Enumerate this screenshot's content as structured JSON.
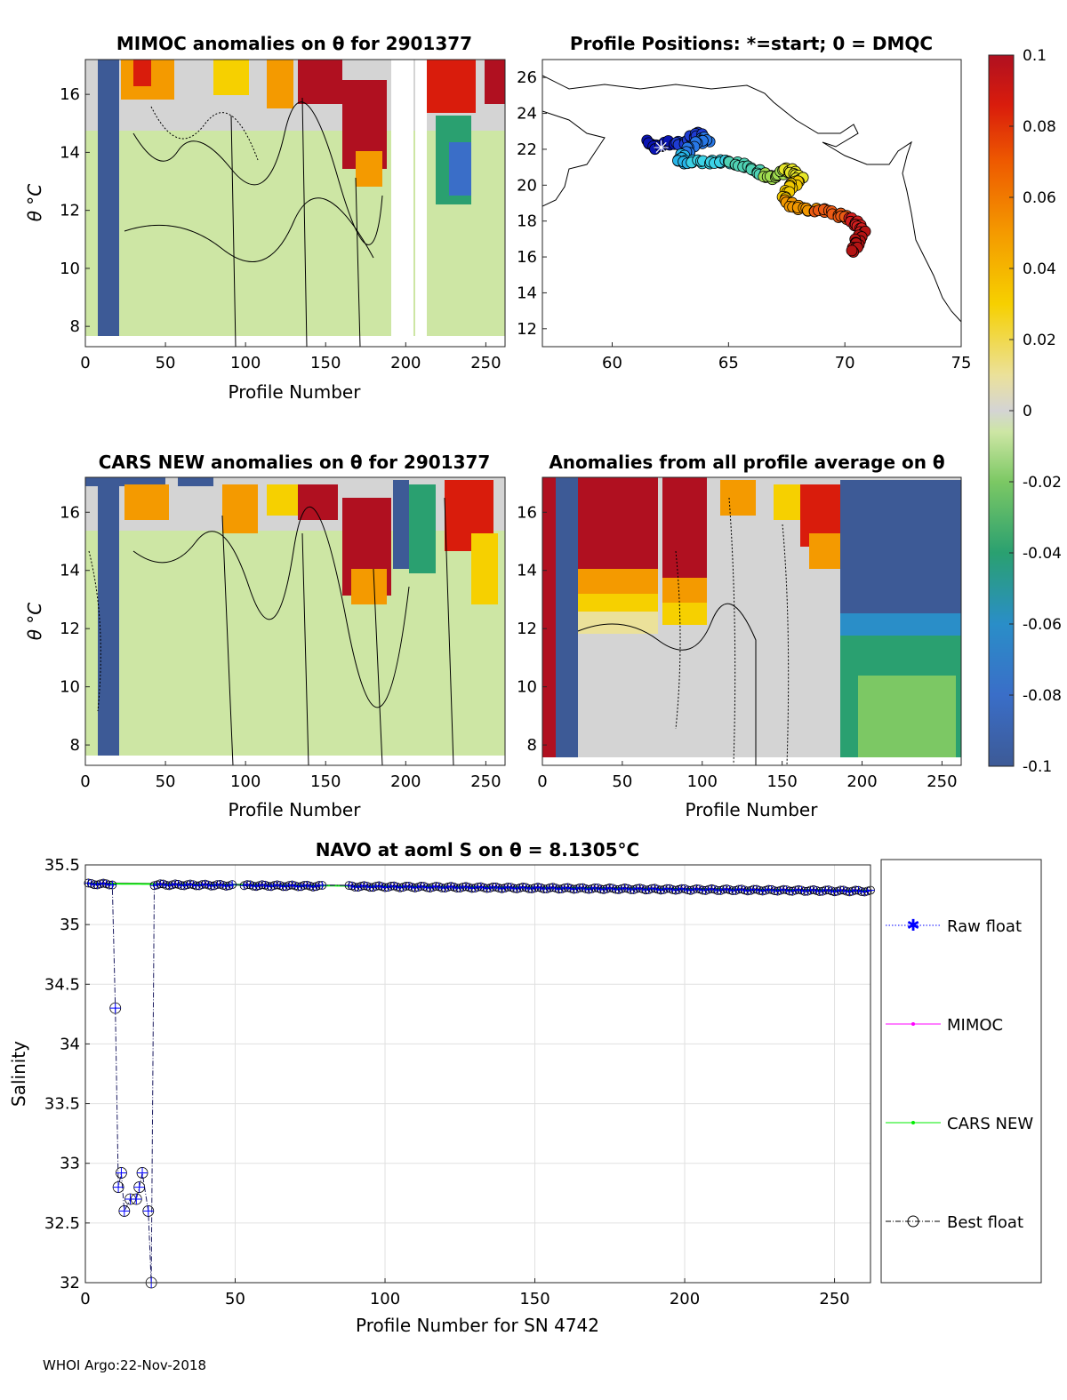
{
  "chart_data": [
    {
      "type": "heatmap",
      "id": "mimoc",
      "title": "MIMOC anomalies on θ  for 2901377",
      "xlabel": "Profile Number",
      "ylabel": "θ °C",
      "xlim": [
        0,
        262
      ],
      "ylim": [
        7.3,
        17.2
      ],
      "xticks": [
        0,
        50,
        100,
        150,
        200,
        250
      ],
      "yticks": [
        8,
        10,
        12,
        14,
        16
      ]
    },
    {
      "type": "scatter",
      "id": "positions",
      "title": "Profile Positions: *=start; 0 = DMQC",
      "xlim": [
        57,
        75
      ],
      "ylim": [
        11,
        27
      ],
      "xticks": [
        60,
        65,
        70,
        75
      ],
      "yticks": [
        12,
        14,
        16,
        18,
        20,
        22,
        24,
        26
      ],
      "track": [
        [
          61.5,
          22.4
        ],
        [
          61.9,
          22.1
        ],
        [
          62.5,
          22.4
        ],
        [
          63.2,
          22.3
        ],
        [
          63.6,
          22.9
        ],
        [
          64.1,
          22.5
        ],
        [
          63.5,
          22.3
        ],
        [
          63.0,
          21.6
        ],
        [
          62.9,
          21.3
        ],
        [
          63.5,
          21.3
        ],
        [
          64.3,
          21.3
        ],
        [
          65.0,
          21.3
        ],
        [
          65.6,
          21.1
        ],
        [
          66.2,
          20.8
        ],
        [
          66.7,
          20.4
        ],
        [
          67.2,
          20.6
        ],
        [
          67.5,
          20.9
        ],
        [
          67.9,
          20.6
        ],
        [
          68.1,
          20.3
        ],
        [
          67.6,
          19.9
        ],
        [
          67.4,
          19.2
        ],
        [
          67.8,
          18.8
        ],
        [
          68.5,
          18.6
        ],
        [
          69.2,
          18.6
        ],
        [
          69.8,
          18.3
        ],
        [
          70.3,
          18.1
        ],
        [
          70.6,
          17.7
        ],
        [
          70.8,
          17.4
        ],
        [
          70.5,
          16.8
        ],
        [
          70.4,
          16.3
        ]
      ],
      "colorbar": {
        "range": [
          -0.1,
          0.1
        ],
        "ticks": [
          "0.1",
          "0.08",
          "0.06",
          "0.04",
          "0.02",
          "0",
          "-0.02",
          "-0.04",
          "-0.06",
          "-0.08",
          "-0.1"
        ]
      }
    },
    {
      "type": "heatmap",
      "id": "cars",
      "title": "CARS NEW anomalies on θ for 2901377",
      "xlabel": "Profile Number",
      "ylabel": "θ °C",
      "xlim": [
        0,
        262
      ],
      "ylim": [
        7.3,
        17.2
      ],
      "xticks": [
        0,
        50,
        100,
        150,
        200,
        250
      ],
      "yticks": [
        8,
        10,
        12,
        14,
        16
      ]
    },
    {
      "type": "heatmap",
      "id": "allavg",
      "title": "Anomalies from all profile average on θ",
      "xlabel": "Profile Number",
      "ylabel": "",
      "xlim": [
        0,
        262
      ],
      "ylim": [
        7.3,
        17.2
      ],
      "xticks": [
        0,
        50,
        100,
        150,
        200,
        250
      ],
      "yticks": [
        8,
        10,
        12,
        14,
        16
      ]
    },
    {
      "type": "line",
      "id": "salinity",
      "title": "NAVO at aoml S on θ = 8.1305°C",
      "xlabel": "Profile Number for SN 4742",
      "ylabel": "Salinity",
      "xlim": [
        0,
        262
      ],
      "ylim": [
        32,
        35.5
      ],
      "xticks": [
        0,
        50,
        100,
        150,
        200,
        250
      ],
      "yticks": [
        32,
        32.5,
        33,
        33.5,
        34,
        34.5,
        35,
        35.5
      ],
      "grid": true,
      "legend": "right",
      "series": [
        {
          "name": "Raw float",
          "color": "#0000ff"
        },
        {
          "name": "MIMOC",
          "color": "#ff00ff"
        },
        {
          "name": "CARS NEW",
          "color": "#00ee00"
        },
        {
          "name": "Best float",
          "color": "#000000"
        }
      ],
      "outliers": [
        [
          10,
          34.3
        ],
        [
          11,
          32.8
        ],
        [
          12,
          32.92
        ],
        [
          13,
          32.6
        ],
        [
          15,
          32.7
        ],
        [
          17,
          32.7
        ],
        [
          18,
          32.8
        ],
        [
          19,
          32.92
        ],
        [
          21,
          32.6
        ],
        [
          22,
          32.0
        ]
      ],
      "baseline": {
        "start": 35.34,
        "end": 35.28
      }
    }
  ],
  "footer": "WHOI Argo:22-Nov-2018"
}
